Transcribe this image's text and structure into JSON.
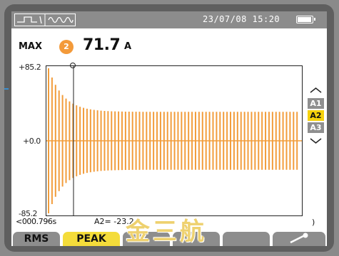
{
  "status_bar": {
    "datetime": "23/07/08 15:20"
  },
  "readout": {
    "label": "MAX",
    "phase": "2",
    "value": "71.7",
    "unit": "A"
  },
  "chart_data": {
    "type": "line",
    "title": "",
    "series": [
      {
        "values": []
      }
    ],
    "y_tick_labels": [
      "+85.2",
      "+0.0",
      "-85.2"
    ],
    "ylim": [
      -85.2,
      85.2
    ],
    "steady_peak": 34,
    "inrush_peak": 85.2,
    "cycles": 72,
    "cursor_time": "000.796s",
    "cursor_value": "A2= -23.2",
    "right_tick": ")",
    "colors": {
      "wave": "#f29d3c",
      "axis": "#222222"
    }
  },
  "channels": [
    "A1",
    "A2",
    "A3"
  ],
  "active_channel": "A2",
  "softkeys": {
    "rms": "RMS",
    "peak": "PEAK"
  },
  "watermark": "金三航"
}
